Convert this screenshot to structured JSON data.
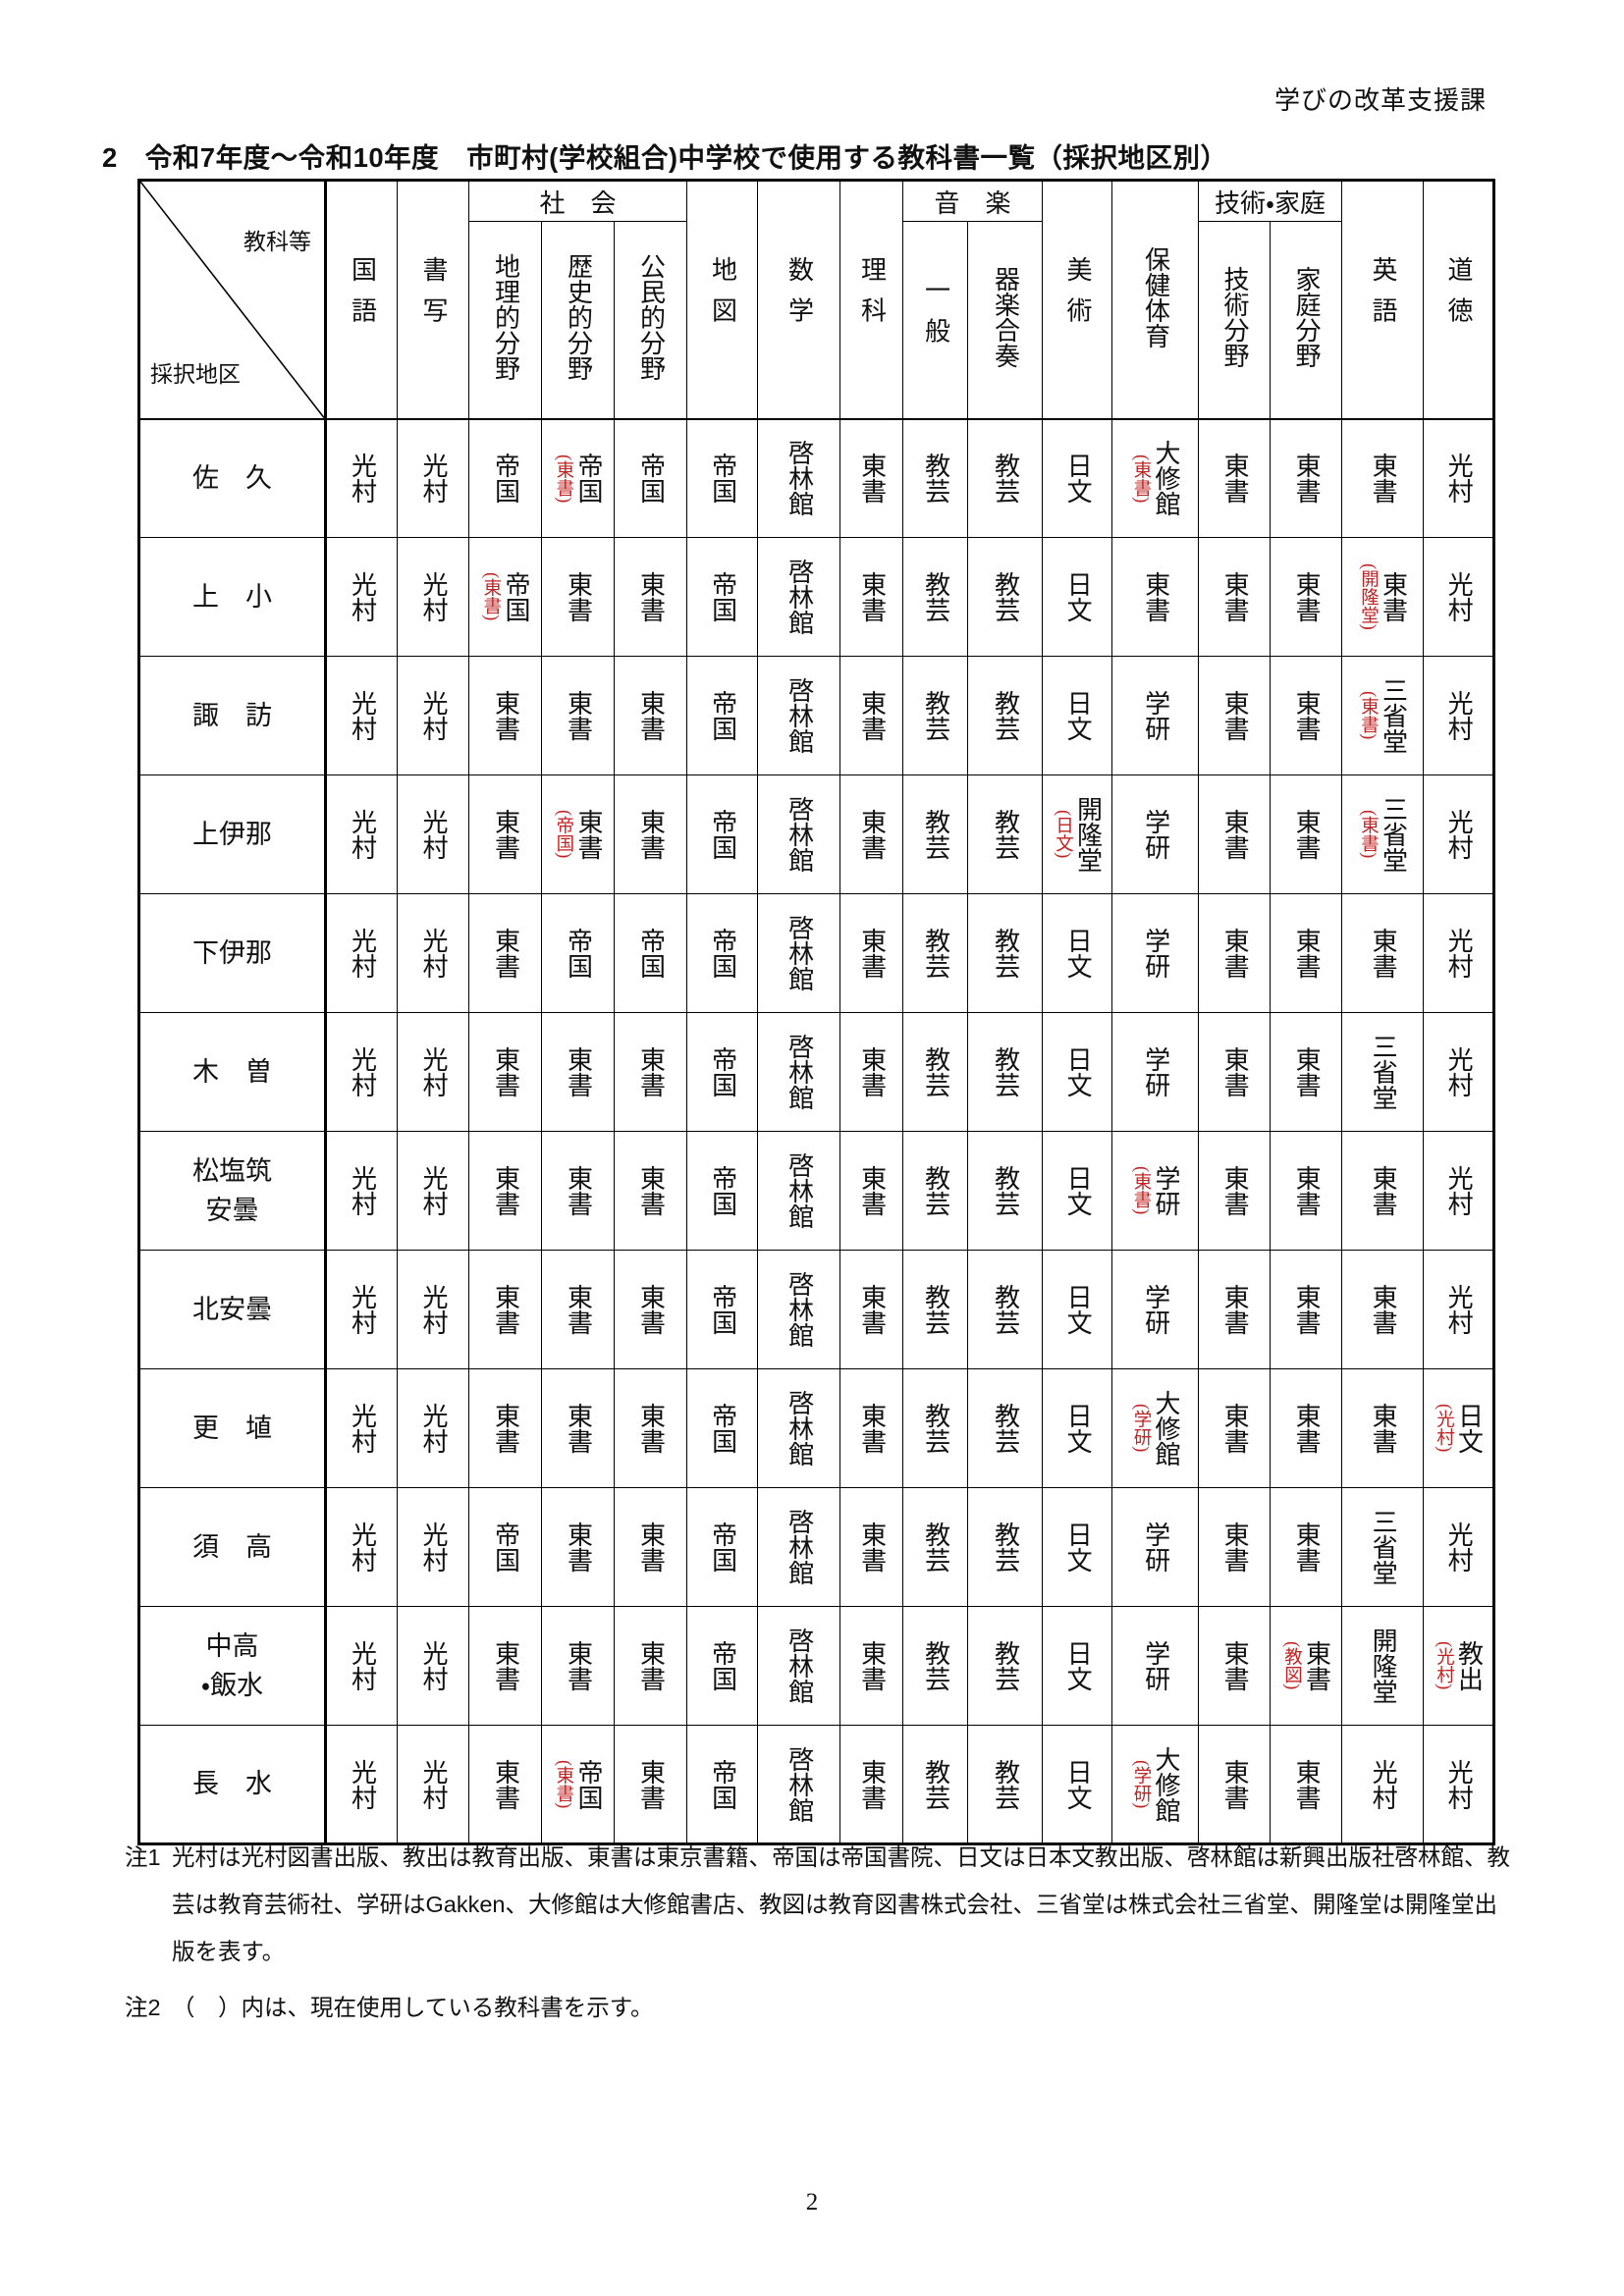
{
  "page": {
    "header_right": "学びの改革支援課",
    "title": "2　令和7年度～令和10年度　市町村(学校組合)中学校で使用する教科書一覧（採択地区別）",
    "page_number": "2"
  },
  "colors": {
    "annotation_red": "#c32222",
    "text": "#111111",
    "border": "#000000"
  },
  "table": {
    "corner_top": "教科等",
    "corner_bottom": "採択地区",
    "top_cells": [
      {
        "label": "国語",
        "rowspan": 2
      },
      {
        "label": "書写",
        "rowspan": 2
      },
      {
        "label": "社　会",
        "colspan": 3
      },
      {
        "label": "地図",
        "rowspan": 2
      },
      {
        "label": "数学",
        "rowspan": 2
      },
      {
        "label": "理科",
        "rowspan": 2
      },
      {
        "label": "音　楽",
        "colspan": 2
      },
      {
        "label": "美術",
        "rowspan": 2
      },
      {
        "label": "保健体育",
        "rowspan": 2
      },
      {
        "label": "技術・家庭",
        "colspan": 2
      },
      {
        "label": "英語",
        "rowspan": 2
      },
      {
        "label": "道徳",
        "rowspan": 2
      }
    ],
    "sub_cells": [
      "地理的分野",
      "歴史的分野",
      "公民的分野",
      "一般",
      "器楽合奏",
      "技術分野",
      "家庭分野"
    ],
    "columns": [
      "国語",
      "書写",
      "地理的分野",
      "歴史的分野",
      "公民的分野",
      "地図",
      "数学",
      "理科",
      "一般",
      "器楽合奏",
      "美術",
      "保健体育",
      "技術分野",
      "家庭分野",
      "英語",
      "道徳"
    ],
    "rows": [
      {
        "district_lines": [
          "佐　久"
        ],
        "cells": [
          {
            "v": "光村"
          },
          {
            "v": "光村"
          },
          {
            "v": "帝国"
          },
          {
            "v": "帝国",
            "c": "東書"
          },
          {
            "v": "帝国"
          },
          {
            "v": "帝国"
          },
          {
            "v": "啓林館"
          },
          {
            "v": "東書"
          },
          {
            "v": "教芸"
          },
          {
            "v": "教芸"
          },
          {
            "v": "日文"
          },
          {
            "v": "大修館",
            "c": "東書"
          },
          {
            "v": "東書"
          },
          {
            "v": "東書"
          },
          {
            "v": "東書"
          },
          {
            "v": "光村"
          }
        ]
      },
      {
        "district_lines": [
          "上　小"
        ],
        "cells": [
          {
            "v": "光村"
          },
          {
            "v": "光村"
          },
          {
            "v": "帝国",
            "c": "東書"
          },
          {
            "v": "東書"
          },
          {
            "v": "東書"
          },
          {
            "v": "帝国"
          },
          {
            "v": "啓林館"
          },
          {
            "v": "東書"
          },
          {
            "v": "教芸"
          },
          {
            "v": "教芸"
          },
          {
            "v": "日文"
          },
          {
            "v": "東書"
          },
          {
            "v": "東書"
          },
          {
            "v": "東書"
          },
          {
            "v": "東書",
            "c": "開隆堂"
          },
          {
            "v": "光村"
          }
        ]
      },
      {
        "district_lines": [
          "諏　訪"
        ],
        "cells": [
          {
            "v": "光村"
          },
          {
            "v": "光村"
          },
          {
            "v": "東書"
          },
          {
            "v": "東書"
          },
          {
            "v": "東書"
          },
          {
            "v": "帝国"
          },
          {
            "v": "啓林館"
          },
          {
            "v": "東書"
          },
          {
            "v": "教芸"
          },
          {
            "v": "教芸"
          },
          {
            "v": "日文"
          },
          {
            "v": "学研"
          },
          {
            "v": "東書"
          },
          {
            "v": "東書"
          },
          {
            "v": "三省堂",
            "c": "東書"
          },
          {
            "v": "光村"
          }
        ]
      },
      {
        "district_lines": [
          "上伊那"
        ],
        "cells": [
          {
            "v": "光村"
          },
          {
            "v": "光村"
          },
          {
            "v": "東書"
          },
          {
            "v": "東書",
            "c": "帝国"
          },
          {
            "v": "東書"
          },
          {
            "v": "帝国"
          },
          {
            "v": "啓林館"
          },
          {
            "v": "東書"
          },
          {
            "v": "教芸"
          },
          {
            "v": "教芸"
          },
          {
            "v": "開隆堂",
            "c": "日文"
          },
          {
            "v": "学研"
          },
          {
            "v": "東書"
          },
          {
            "v": "東書"
          },
          {
            "v": "三省堂",
            "c": "東書"
          },
          {
            "v": "光村"
          }
        ]
      },
      {
        "district_lines": [
          "下伊那"
        ],
        "cells": [
          {
            "v": "光村"
          },
          {
            "v": "光村"
          },
          {
            "v": "東書"
          },
          {
            "v": "帝国"
          },
          {
            "v": "帝国"
          },
          {
            "v": "帝国"
          },
          {
            "v": "啓林館"
          },
          {
            "v": "東書"
          },
          {
            "v": "教芸"
          },
          {
            "v": "教芸"
          },
          {
            "v": "日文"
          },
          {
            "v": "学研"
          },
          {
            "v": "東書"
          },
          {
            "v": "東書"
          },
          {
            "v": "東書"
          },
          {
            "v": "光村"
          }
        ]
      },
      {
        "district_lines": [
          "木　曽"
        ],
        "cells": [
          {
            "v": "光村"
          },
          {
            "v": "光村"
          },
          {
            "v": "東書"
          },
          {
            "v": "東書"
          },
          {
            "v": "東書"
          },
          {
            "v": "帝国"
          },
          {
            "v": "啓林館"
          },
          {
            "v": "東書"
          },
          {
            "v": "教芸"
          },
          {
            "v": "教芸"
          },
          {
            "v": "日文"
          },
          {
            "v": "学研"
          },
          {
            "v": "東書"
          },
          {
            "v": "東書"
          },
          {
            "v": "三省堂"
          },
          {
            "v": "光村"
          }
        ]
      },
      {
        "district_lines": [
          "松塩筑",
          "安曇"
        ],
        "cells": [
          {
            "v": "光村"
          },
          {
            "v": "光村"
          },
          {
            "v": "東書"
          },
          {
            "v": "東書"
          },
          {
            "v": "東書"
          },
          {
            "v": "帝国"
          },
          {
            "v": "啓林館"
          },
          {
            "v": "東書"
          },
          {
            "v": "教芸"
          },
          {
            "v": "教芸"
          },
          {
            "v": "日文"
          },
          {
            "v": "学研",
            "c": "東書"
          },
          {
            "v": "東書"
          },
          {
            "v": "東書"
          },
          {
            "v": "東書"
          },
          {
            "v": "光村"
          }
        ]
      },
      {
        "district_lines": [
          "北安曇"
        ],
        "cells": [
          {
            "v": "光村"
          },
          {
            "v": "光村"
          },
          {
            "v": "東書"
          },
          {
            "v": "東書"
          },
          {
            "v": "東書"
          },
          {
            "v": "帝国"
          },
          {
            "v": "啓林館"
          },
          {
            "v": "東書"
          },
          {
            "v": "教芸"
          },
          {
            "v": "教芸"
          },
          {
            "v": "日文"
          },
          {
            "v": "学研"
          },
          {
            "v": "東書"
          },
          {
            "v": "東書"
          },
          {
            "v": "東書"
          },
          {
            "v": "光村"
          }
        ]
      },
      {
        "district_lines": [
          "更　埴"
        ],
        "cells": [
          {
            "v": "光村"
          },
          {
            "v": "光村"
          },
          {
            "v": "東書"
          },
          {
            "v": "東書"
          },
          {
            "v": "東書"
          },
          {
            "v": "帝国"
          },
          {
            "v": "啓林館"
          },
          {
            "v": "東書"
          },
          {
            "v": "教芸"
          },
          {
            "v": "教芸"
          },
          {
            "v": "日文"
          },
          {
            "v": "大修館",
            "c": "学研"
          },
          {
            "v": "東書"
          },
          {
            "v": "東書"
          },
          {
            "v": "東書"
          },
          {
            "v": "日文",
            "c": "光村"
          }
        ]
      },
      {
        "district_lines": [
          "須　高"
        ],
        "cells": [
          {
            "v": "光村"
          },
          {
            "v": "光村"
          },
          {
            "v": "帝国"
          },
          {
            "v": "東書"
          },
          {
            "v": "東書"
          },
          {
            "v": "帝国"
          },
          {
            "v": "啓林館"
          },
          {
            "v": "東書"
          },
          {
            "v": "教芸"
          },
          {
            "v": "教芸"
          },
          {
            "v": "日文"
          },
          {
            "v": "学研"
          },
          {
            "v": "東書"
          },
          {
            "v": "東書"
          },
          {
            "v": "三省堂"
          },
          {
            "v": "光村"
          }
        ]
      },
      {
        "district_lines": [
          "中高",
          "・飯水"
        ],
        "cells": [
          {
            "v": "光村"
          },
          {
            "v": "光村"
          },
          {
            "v": "東書"
          },
          {
            "v": "東書"
          },
          {
            "v": "東書"
          },
          {
            "v": "帝国"
          },
          {
            "v": "啓林館"
          },
          {
            "v": "東書"
          },
          {
            "v": "教芸"
          },
          {
            "v": "教芸"
          },
          {
            "v": "日文"
          },
          {
            "v": "学研"
          },
          {
            "v": "東書"
          },
          {
            "v": "東書",
            "c": "教図"
          },
          {
            "v": "開隆堂"
          },
          {
            "v": "教出",
            "c": "光村"
          }
        ]
      },
      {
        "district_lines": [
          "長　水"
        ],
        "cells": [
          {
            "v": "光村"
          },
          {
            "v": "光村"
          },
          {
            "v": "東書"
          },
          {
            "v": "帝国",
            "c": "東書"
          },
          {
            "v": "東書"
          },
          {
            "v": "帝国"
          },
          {
            "v": "啓林館"
          },
          {
            "v": "東書"
          },
          {
            "v": "教芸"
          },
          {
            "v": "教芸"
          },
          {
            "v": "日文"
          },
          {
            "v": "大修館",
            "c": "学研"
          },
          {
            "v": "東書"
          },
          {
            "v": "東書"
          },
          {
            "v": "光村"
          },
          {
            "v": "光村"
          }
        ]
      }
    ]
  },
  "notes": [
    {
      "label": "注1",
      "text": "光村は光村図書出版、教出は教育出版、東書は東京書籍、帝国は帝国書院、日文は日本文教出版、啓林館は新興出版社啓林館、教芸は教育芸術社、学研はGakken、大修館は大修館書店、教図は教育図書株式会社、三省堂は株式会社三省堂、開隆堂は開隆堂出版を表す。"
    },
    {
      "label": "注2",
      "text": "（　）内は、現在使用している教科書を示す。"
    }
  ]
}
